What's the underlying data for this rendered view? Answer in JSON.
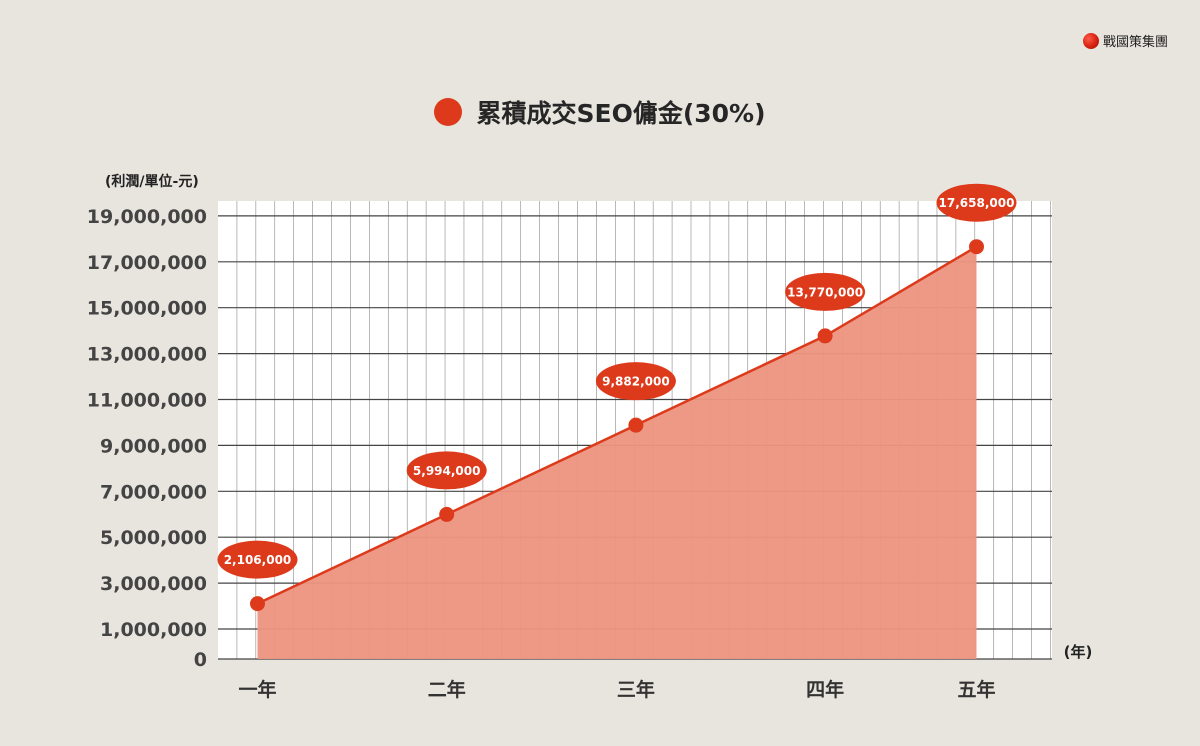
{
  "brand": {
    "name": "戰國策集團",
    "logo_icon": "red-sphere-logo"
  },
  "colors": {
    "background": "#e8e5df",
    "accent": "#dd3a1c",
    "area_fill": "#ec9580",
    "grid": "#444444",
    "plot_background": "#ffffff"
  },
  "chart_data": {
    "type": "area",
    "legend": {
      "label": "累積成交SEO傭金(30%)",
      "position": "top-center"
    },
    "ylabel": "(利潤/單位-元)",
    "xlabel": "(年)",
    "categories": [
      "一年",
      "二年",
      "三年",
      "四年",
      "五年"
    ],
    "series": [
      {
        "name": "累積成交SEO傭金(30%)",
        "values": [
          2106000,
          5994000,
          9882000,
          13770000,
          17658000
        ],
        "labels": [
          "2,106,000",
          "5,994,000",
          "9,882,000",
          "13,770,000",
          "17,658,000"
        ]
      }
    ],
    "yticks": [
      0,
      1000000,
      3000000,
      5000000,
      7000000,
      9000000,
      11000000,
      13000000,
      15000000,
      17000000,
      19000000
    ],
    "ytick_labels": [
      "0",
      "1,000,000",
      "3,000,000",
      "5,000,000",
      "7,000,000",
      "9,000,000",
      "11,000,000",
      "13,000,000",
      "15,000,000",
      "17,000,000",
      "19,000,000"
    ],
    "ylim": [
      0,
      20000000
    ],
    "grid": true
  }
}
